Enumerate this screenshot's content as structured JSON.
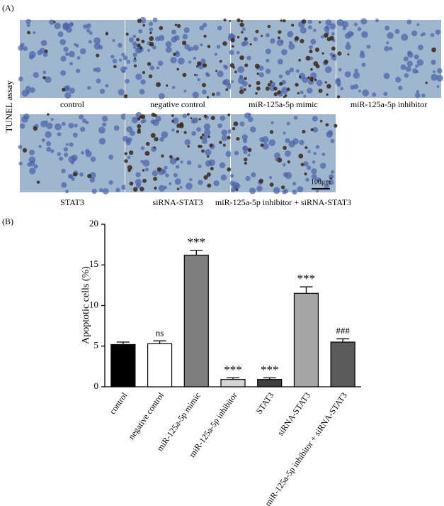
{
  "panel_a": {
    "label": "(A)",
    "side_label": "TUNEL assay",
    "captions": [
      "control",
      "negative control",
      "miR-125a-5p mimic",
      "miR-125a-5p inhibitor",
      "STAT3",
      "siRNA-STAT3",
      "miR-125a-5p inhibitor + siRNA-STAT3"
    ],
    "scale_bar": "100μm"
  },
  "panel_b": {
    "label": "(B)"
  },
  "chart_data": {
    "type": "bar",
    "y_label": "Apoptotic cells (%)",
    "categories": [
      "control",
      "negative control",
      "miR-125a-5p mimic",
      "miR-125a-5p inhibitor",
      "STAT3",
      "siRNA-STAT3",
      "miR-125a-5p inhibitor + siRNA-STAT3"
    ],
    "values": [
      5.2,
      5.3,
      16.2,
      0.9,
      0.9,
      11.5,
      5.5
    ],
    "errors": [
      0.3,
      0.35,
      0.6,
      0.2,
      0.2,
      0.8,
      0.4
    ],
    "colors": [
      "#000000",
      "#ffffff",
      "#7f7f7f",
      "#d4d4d4",
      "#3f3f3f",
      "#a6a6a6",
      "#5a5a5a"
    ],
    "significance": [
      null,
      "ns",
      "***",
      "***",
      "***",
      "***",
      "###"
    ],
    "ylim": [
      0,
      20
    ],
    "yticks": [
      0,
      5,
      10,
      15,
      20
    ]
  }
}
